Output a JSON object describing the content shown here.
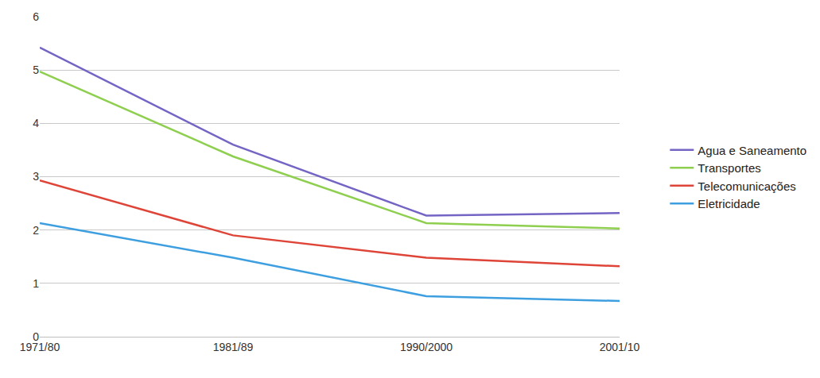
{
  "chart_data": {
    "type": "line",
    "categories": [
      "1971/80",
      "1981/89",
      "1990/2000",
      "2001/10"
    ],
    "series": [
      {
        "name": "Agua e Saneamento",
        "color": "#7464c4",
        "values": [
          5.42,
          3.6,
          2.27,
          2.32
        ]
      },
      {
        "name": "Transportes",
        "color": "#8fcf4f",
        "values": [
          4.97,
          3.38,
          2.13,
          2.03
        ]
      },
      {
        "name": "Telecomunicações",
        "color": "#de4437",
        "values": [
          2.93,
          1.9,
          1.48,
          1.32
        ]
      },
      {
        "name": "Eletricidade",
        "color": "#3e9fe0",
        "values": [
          2.13,
          1.48,
          0.76,
          0.67
        ]
      }
    ],
    "ylim": [
      0,
      6
    ],
    "yticks": [
      0,
      1,
      2,
      3,
      4,
      5,
      6
    ],
    "grid": true,
    "legend": "right"
  }
}
